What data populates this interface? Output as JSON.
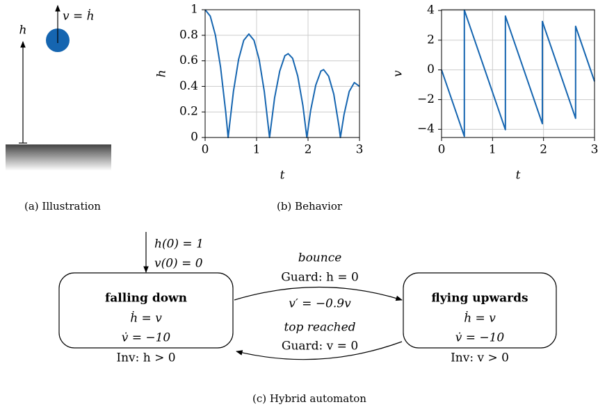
{
  "illustration": {
    "height_label": "h",
    "velocity_label": "v = ḣ"
  },
  "chart_data": [
    {
      "type": "line",
      "xlabel": "t",
      "ylabel": "h",
      "color": "#1565b0",
      "x": [
        0,
        0.1,
        0.2,
        0.3,
        0.4,
        0.447,
        0.55,
        0.65,
        0.75,
        0.85,
        0.95,
        1.05,
        1.15,
        1.252,
        1.35,
        1.45,
        1.55,
        1.614,
        1.7,
        1.8,
        1.9,
        1.977,
        2.05,
        2.15,
        2.25,
        2.303,
        2.4,
        2.5,
        2.6,
        2.629,
        2.7,
        2.8,
        2.9,
        3
      ],
      "values": [
        1,
        0.95,
        0.8,
        0.55,
        0.2,
        0,
        0.36,
        0.61,
        0.76,
        0.81,
        0.76,
        0.61,
        0.36,
        0,
        0.31,
        0.52,
        0.64,
        0.656,
        0.62,
        0.48,
        0.25,
        0,
        0.21,
        0.41,
        0.52,
        0.531,
        0.48,
        0.34,
        0.09,
        0,
        0.18,
        0.36,
        0.43,
        0.4
      ],
      "xlim": [
        0,
        3
      ],
      "ylim": [
        0,
        1
      ],
      "xticks": [
        0,
        1,
        2,
        3
      ],
      "yticks": [
        0,
        0.2,
        0.4,
        0.6,
        0.8,
        1
      ],
      "grid": true
    },
    {
      "type": "line",
      "xlabel": "t",
      "ylabel": "v",
      "color": "#1565b0",
      "x": [
        0,
        0.447,
        0.447,
        1.252,
        1.252,
        1.977,
        1.977,
        2.629,
        2.629,
        3
      ],
      "values": [
        0,
        -4.47,
        4.025,
        -4.025,
        3.622,
        -3.622,
        3.26,
        -3.26,
        2.934,
        -0.776
      ],
      "xlim": [
        0,
        3
      ],
      "ylim": [
        -4.55,
        4.05
      ],
      "xticks": [
        0,
        1,
        2,
        3
      ],
      "yticks": [
        {
          "value": -4,
          "label": "−4"
        },
        {
          "value": -2,
          "label": "−2"
        },
        0,
        2,
        4
      ],
      "grid": true
    }
  ],
  "captions": [
    "(a) Illustration",
    "(b) Behavior",
    "(c) Hybrid automaton"
  ],
  "automaton": {
    "initial": [
      "h(0) = 1",
      "v(0) = 0"
    ],
    "states": [
      {
        "name": "falling down",
        "lines": [
          "ḣ  =  v",
          "v̇  =  −10",
          "Inv: h  >  0"
        ]
      },
      {
        "name": "flying upwards",
        "lines": [
          "ḣ  =  v",
          "v̇  =  −10",
          "Inv: v  >  0"
        ]
      }
    ],
    "edges": [
      {
        "event": "bounce",
        "guard": "Guard: h = 0",
        "reset": "v′ = −0.9v"
      },
      {
        "event": "top reached",
        "guard": "Guard: v = 0"
      }
    ]
  }
}
